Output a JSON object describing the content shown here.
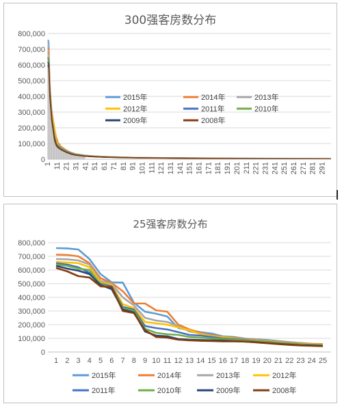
{
  "chart_data": [
    {
      "type": "line",
      "title": "300强客房数分布",
      "xlabel": "",
      "ylabel": "",
      "ylim": [
        0,
        800000
      ],
      "yticks": [
        "0",
        "100,000",
        "200,000",
        "300,000",
        "400,000",
        "500,000",
        "600,000",
        "700,000",
        "800,000"
      ],
      "x_tick_labels": [
        1,
        11,
        21,
        31,
        41,
        51,
        61,
        71,
        81,
        91,
        101,
        111,
        121,
        131,
        141,
        151,
        161,
        171,
        181,
        191,
        201,
        211,
        221,
        231,
        241,
        251,
        261,
        271,
        281,
        291
      ],
      "x_range": [
        1,
        300
      ],
      "grid": "horizontal",
      "legend_position": "center-right",
      "bars": "gray columns for the 2015 values at each rank",
      "series": [
        {
          "name": "2015年",
          "color": "#5b9bd5",
          "x": [
            1,
            2,
            3,
            5,
            8,
            10,
            12,
            15,
            20,
            25,
            30,
            40,
            50,
            60,
            80,
            100,
            150,
            200,
            250,
            300
          ],
          "values": [
            760000,
            750000,
            500000,
            300000,
            180000,
            130000,
            100000,
            80000,
            60000,
            45000,
            35000,
            26000,
            21000,
            18000,
            14000,
            11000,
            8000,
            6000,
            5000,
            4000
          ]
        },
        {
          "name": "2014年",
          "color": "#ed7d31",
          "x": [
            1,
            2,
            3,
            5,
            8,
            10,
            12,
            15,
            20,
            25,
            30,
            40,
            50,
            60,
            80,
            100,
            150,
            200,
            250,
            300
          ],
          "values": [
            710000,
            700000,
            480000,
            320000,
            200000,
            140000,
            105000,
            82000,
            60000,
            44000,
            34000,
            25000,
            20000,
            17000,
            13000,
            10500,
            7800,
            5800,
            4800,
            3800
          ]
        },
        {
          "name": "2013年",
          "color": "#a5a5a5",
          "x": [
            1,
            2,
            3,
            5,
            8,
            10,
            12,
            15,
            20,
            25,
            30,
            40,
            50,
            60,
            80,
            100,
            150,
            200,
            250,
            300
          ],
          "values": [
            680000,
            660000,
            470000,
            300000,
            170000,
            120000,
            95000,
            76000,
            56000,
            42000,
            32000,
            24000,
            19000,
            16000,
            12500,
            10000,
            7500,
            5500,
            4500,
            3600
          ]
        },
        {
          "name": "2012年",
          "color": "#ffc000",
          "x": [
            1,
            2,
            3,
            5,
            8,
            10,
            12,
            15,
            20,
            25,
            30,
            40,
            50,
            60,
            80,
            100,
            150,
            200,
            250,
            300
          ],
          "values": [
            660000,
            640000,
            450000,
            290000,
            210000,
            120000,
            92000,
            73000,
            54000,
            40000,
            31000,
            23000,
            18500,
            15500,
            12000,
            9600,
            7200,
            5300,
            4300,
            3400
          ]
        },
        {
          "name": "2011年",
          "color": "#4472c4",
          "x": [
            1,
            2,
            3,
            5,
            8,
            10,
            12,
            15,
            20,
            25,
            30,
            40,
            50,
            60,
            80,
            100,
            150,
            200,
            250,
            300
          ],
          "values": [
            650000,
            630000,
            440000,
            280000,
            150000,
            100000,
            85000,
            70000,
            52000,
            39000,
            30000,
            22000,
            18000,
            15000,
            11500,
            9200,
            7000,
            5100,
            4100,
            3300
          ]
        },
        {
          "name": "2010年",
          "color": "#70ad47",
          "x": [
            1,
            2,
            3,
            5,
            8,
            10,
            12,
            15,
            20,
            25,
            30,
            40,
            50,
            60,
            80,
            100,
            150,
            200,
            250,
            300
          ],
          "values": [
            640000,
            620000,
            430000,
            270000,
            140000,
            95000,
            80000,
            66000,
            50000,
            37000,
            29000,
            21000,
            17000,
            14500,
            11000,
            8900,
            6700,
            4900,
            4000,
            3200
          ]
        },
        {
          "name": "2009年",
          "color": "#264478",
          "x": [
            1,
            2,
            3,
            5,
            8,
            10,
            12,
            15,
            20,
            25,
            30,
            40,
            50,
            60,
            80,
            100,
            150,
            200,
            250,
            300
          ],
          "values": [
            620000,
            600000,
            420000,
            260000,
            130000,
            90000,
            76000,
            62000,
            47000,
            35000,
            27000,
            20000,
            16000,
            13500,
            10500,
            8500,
            6400,
            4700,
            3800,
            3000
          ]
        },
        {
          "name": "2008年",
          "color": "#843c0c",
          "x": [
            1,
            2,
            3,
            5,
            8,
            10,
            12,
            15,
            20,
            25,
            30,
            40,
            50,
            60,
            80,
            100,
            150,
            200,
            250,
            300
          ],
          "values": [
            600000,
            580000,
            400000,
            250000,
            120000,
            85000,
            72000,
            60000,
            45000,
            33000,
            26000,
            19000,
            15500,
            13000,
            10000,
            8200,
            6200,
            4500,
            3600,
            2900
          ]
        }
      ]
    },
    {
      "type": "line",
      "title": "25强客房数分布",
      "xlabel": "",
      "ylabel": "",
      "ylim": [
        0,
        800000
      ],
      "yticks": [
        "0",
        "100,000",
        "200,000",
        "300,000",
        "400,000",
        "500,000",
        "600,000",
        "700,000",
        "800,000"
      ],
      "categories": [
        1,
        2,
        3,
        4,
        5,
        6,
        7,
        8,
        9,
        10,
        11,
        12,
        13,
        14,
        15,
        16,
        17,
        18,
        19,
        20,
        21,
        22,
        23,
        24,
        25
      ],
      "grid": "horizontal",
      "legend_position": "bottom",
      "series": [
        {
          "name": "2015年",
          "color": "#5b9bd5",
          "values": [
            760000,
            758000,
            750000,
            680000,
            570000,
            510000,
            508000,
            360000,
            295000,
            280000,
            260000,
            175000,
            160000,
            145000,
            135000,
            115000,
            110000,
            98000,
            92000,
            88000,
            80000,
            72000,
            66000,
            60000,
            58000
          ]
        },
        {
          "name": "2014年",
          "color": "#ed7d31",
          "values": [
            712000,
            710000,
            700000,
            650000,
            540000,
            505000,
            445000,
            355000,
            355000,
            305000,
            295000,
            200000,
            165000,
            140000,
            125000,
            110000,
            105000,
            95000,
            88000,
            82000,
            76000,
            70000,
            65000,
            60000,
            57000
          ]
        },
        {
          "name": "2013年",
          "color": "#a5a5a5",
          "values": [
            680000,
            678000,
            670000,
            640000,
            520000,
            500000,
            400000,
            340000,
            250000,
            230000,
            220000,
            190000,
            150000,
            135000,
            120000,
            105000,
            100000,
            92000,
            85000,
            80000,
            74000,
            68000,
            62000,
            58000,
            55000
          ]
        },
        {
          "name": "2012年",
          "color": "#ffc000",
          "values": [
            660000,
            655000,
            650000,
            620000,
            510000,
            490000,
            350000,
            320000,
            220000,
            210000,
            200000,
            180000,
            160000,
            130000,
            115000,
            110000,
            100000,
            90000,
            85000,
            78000,
            72000,
            66000,
            60000,
            56000,
            54000
          ]
        },
        {
          "name": "2011年",
          "color": "#4472c4",
          "values": [
            650000,
            640000,
            620000,
            580000,
            500000,
            480000,
            330000,
            310000,
            190000,
            175000,
            165000,
            145000,
            125000,
            120000,
            110000,
            100000,
            95000,
            88000,
            80000,
            74000,
            68000,
            62000,
            56000,
            52000,
            50000
          ]
        },
        {
          "name": "2010年",
          "color": "#70ad47",
          "values": [
            640000,
            630000,
            610000,
            600000,
            495000,
            470000,
            320000,
            300000,
            170000,
            140000,
            130000,
            125000,
            110000,
            105000,
            100000,
            95000,
            90000,
            84000,
            78000,
            72000,
            66000,
            60000,
            55000,
            50000,
            48000
          ]
        },
        {
          "name": "2009年",
          "color": "#264478",
          "values": [
            630000,
            610000,
            595000,
            570000,
            490000,
            460000,
            310000,
            290000,
            150000,
            120000,
            115000,
            95000,
            90000,
            88000,
            86000,
            84000,
            80000,
            76000,
            72000,
            66000,
            60000,
            55000,
            50000,
            47000,
            45000
          ]
        },
        {
          "name": "2008年",
          "color": "#843c0c",
          "values": [
            615000,
            590000,
            555000,
            545000,
            480000,
            475000,
            300000,
            285000,
            160000,
            110000,
            105000,
            90000,
            85000,
            82000,
            80000,
            78000,
            78000,
            76000,
            70000,
            64000,
            58000,
            52000,
            48000,
            45000,
            43000
          ]
        }
      ]
    }
  ]
}
